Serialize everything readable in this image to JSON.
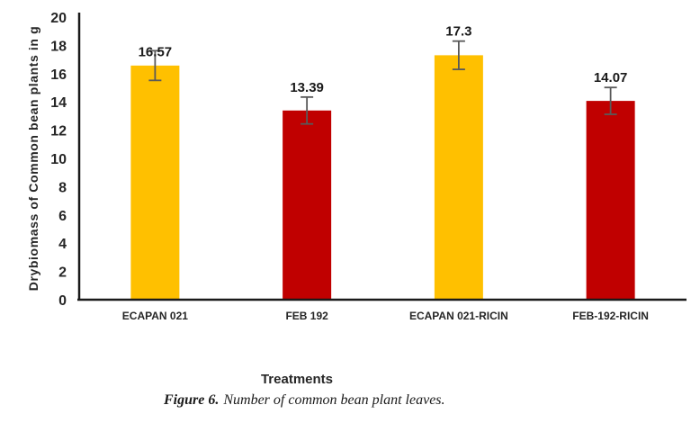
{
  "figure": {
    "caption_label": "Figure 6.",
    "caption_text": "Number of common bean plant leaves."
  },
  "chart_data": {
    "type": "bar",
    "title": "",
    "categories": [
      "ECAPAN 021",
      "FEB 192",
      "ECAPAN 021-RICIN",
      "FEB-192-RICIN"
    ],
    "values": [
      16.57,
      13.39,
      17.3,
      14.07
    ],
    "value_labels": [
      "16.57",
      "13.39",
      "17.3",
      "14.07"
    ],
    "error_bars": [
      1.05,
      0.95,
      1.0,
      0.95
    ],
    "bar_colors": [
      "#FFC000",
      "#C00000",
      "#FFC000",
      "#C00000"
    ],
    "xlabel": "Treatments",
    "ylabel": "Drybiomass of Common bean plants in g",
    "ylim": [
      0,
      20
    ],
    "yticks": [
      0,
      2,
      4,
      6,
      8,
      10,
      12,
      14,
      16,
      18,
      20
    ],
    "grid": false,
    "legend": "none",
    "axis_color": "#1a1a1a",
    "tick_label_color": "#262626",
    "error_bar_color": "#595959",
    "background": "#ffffff"
  }
}
